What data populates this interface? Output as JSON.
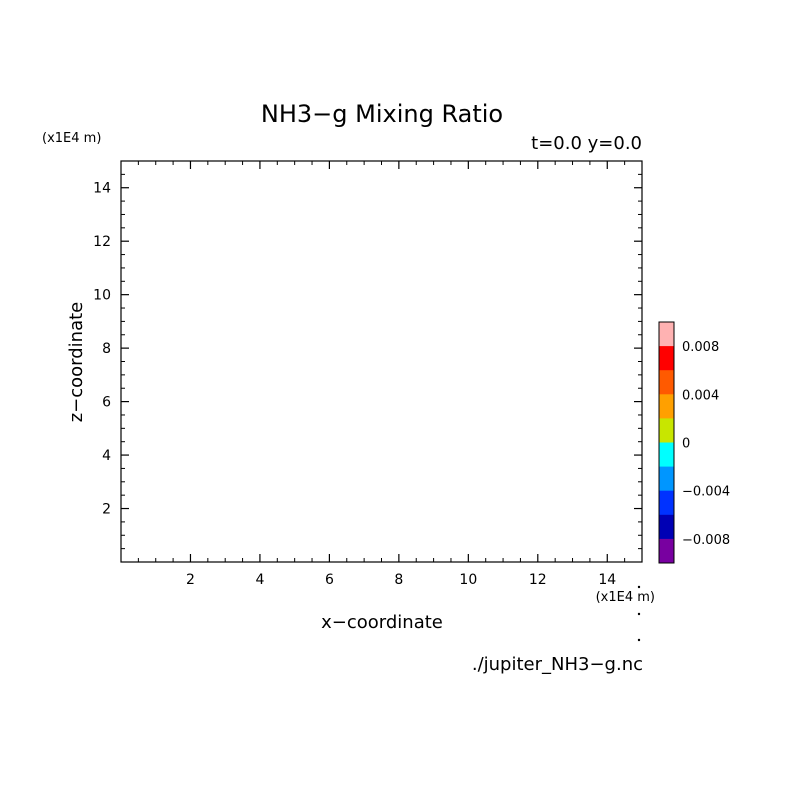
{
  "chart_data": {
    "type": "heatmap",
    "title": "NH3−g Mixing Ratio",
    "subtitle": "t=0.0 y=0.0",
    "xlabel": "x−coordinate",
    "ylabel": "z−coordinate",
    "x_unit": "(x1E4 m)",
    "z_unit": "(x1E4 m)",
    "xlim": [
      0,
      15
    ],
    "ylim": [
      0,
      15
    ],
    "x_ticks": [
      2,
      4,
      6,
      8,
      10,
      12,
      14
    ],
    "y_ticks": [
      2,
      4,
      6,
      8,
      10,
      12,
      14
    ],
    "grid": false,
    "values": [],
    "colorbar": {
      "placement": "right",
      "range": [
        -0.01,
        0.01
      ],
      "colors": [
        "#ffb2b2",
        "#ff0000",
        "#ff5a00",
        "#ffa000",
        "#c8e600",
        "#00ffff",
        "#0096ff",
        "#0032ff",
        "#0000b4",
        "#7800a0"
      ],
      "ticks": [
        {
          "value": 0.008,
          "label": "0.008"
        },
        {
          "value": 0.004,
          "label": "0.004"
        },
        {
          "value": 0,
          "label": "0"
        },
        {
          "value": -0.004,
          "label": "−0.004"
        },
        {
          "value": -0.008,
          "label": "−0.008"
        }
      ]
    },
    "source_file": "./jupiter_NH3−g.nc"
  }
}
